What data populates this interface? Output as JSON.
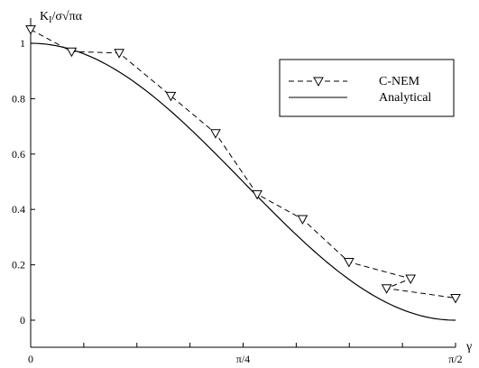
{
  "chart_data": {
    "type": "line",
    "title": "",
    "xlabel": "γ",
    "ylabel": "K_I/σ√πα",
    "ylabel_main": "K",
    "ylabel_sub": "I",
    "ylabel_rest": "/σ√πα",
    "xlim": [
      0,
      1.5708
    ],
    "ylim": [
      -0.1,
      1.07
    ],
    "xticks": [
      {
        "value": 0,
        "label": "0"
      },
      {
        "value": 0.785398,
        "label": "π/4"
      },
      {
        "value": 1.570796,
        "label": "π/2"
      }
    ],
    "xminor_ticks": [
      0.19635,
      0.392699,
      0.589049,
      0.981748,
      1.178097,
      1.374447
    ],
    "yticks": [
      {
        "value": 0,
        "label": "0"
      },
      {
        "value": 0.2,
        "label": "0.2"
      },
      {
        "value": 0.4,
        "label": "0.4"
      },
      {
        "value": 0.6,
        "label": "0.6"
      },
      {
        "value": 0.8,
        "label": "0.8"
      },
      {
        "value": 1,
        "label": "1"
      }
    ],
    "grid": false,
    "legend_position": "top-right",
    "series": [
      {
        "name": "C-NEM",
        "style": "dashed",
        "marker": "triangle-down",
        "x": [
          0,
          0.1514,
          0.3273,
          0.5183,
          0.6835,
          0.8375,
          1.0052,
          1.1767,
          1.4047,
          1.5708,
          1.316
        ],
        "y": [
          1.05,
          0.97,
          0.965,
          0.81,
          0.675,
          0.455,
          0.365,
          0.21,
          0.15,
          0.08,
          0.115
        ]
      },
      {
        "name": "Analytical",
        "style": "solid",
        "marker": "none",
        "function": "cos^2(gamma)",
        "x": [
          0,
          0.1963,
          0.3927,
          0.589,
          0.7854,
          0.9817,
          1.1781,
          1.3744,
          1.5708
        ],
        "y": [
          1.0,
          0.962,
          0.854,
          0.691,
          0.5,
          0.309,
          0.146,
          0.038,
          0.0
        ]
      }
    ]
  }
}
